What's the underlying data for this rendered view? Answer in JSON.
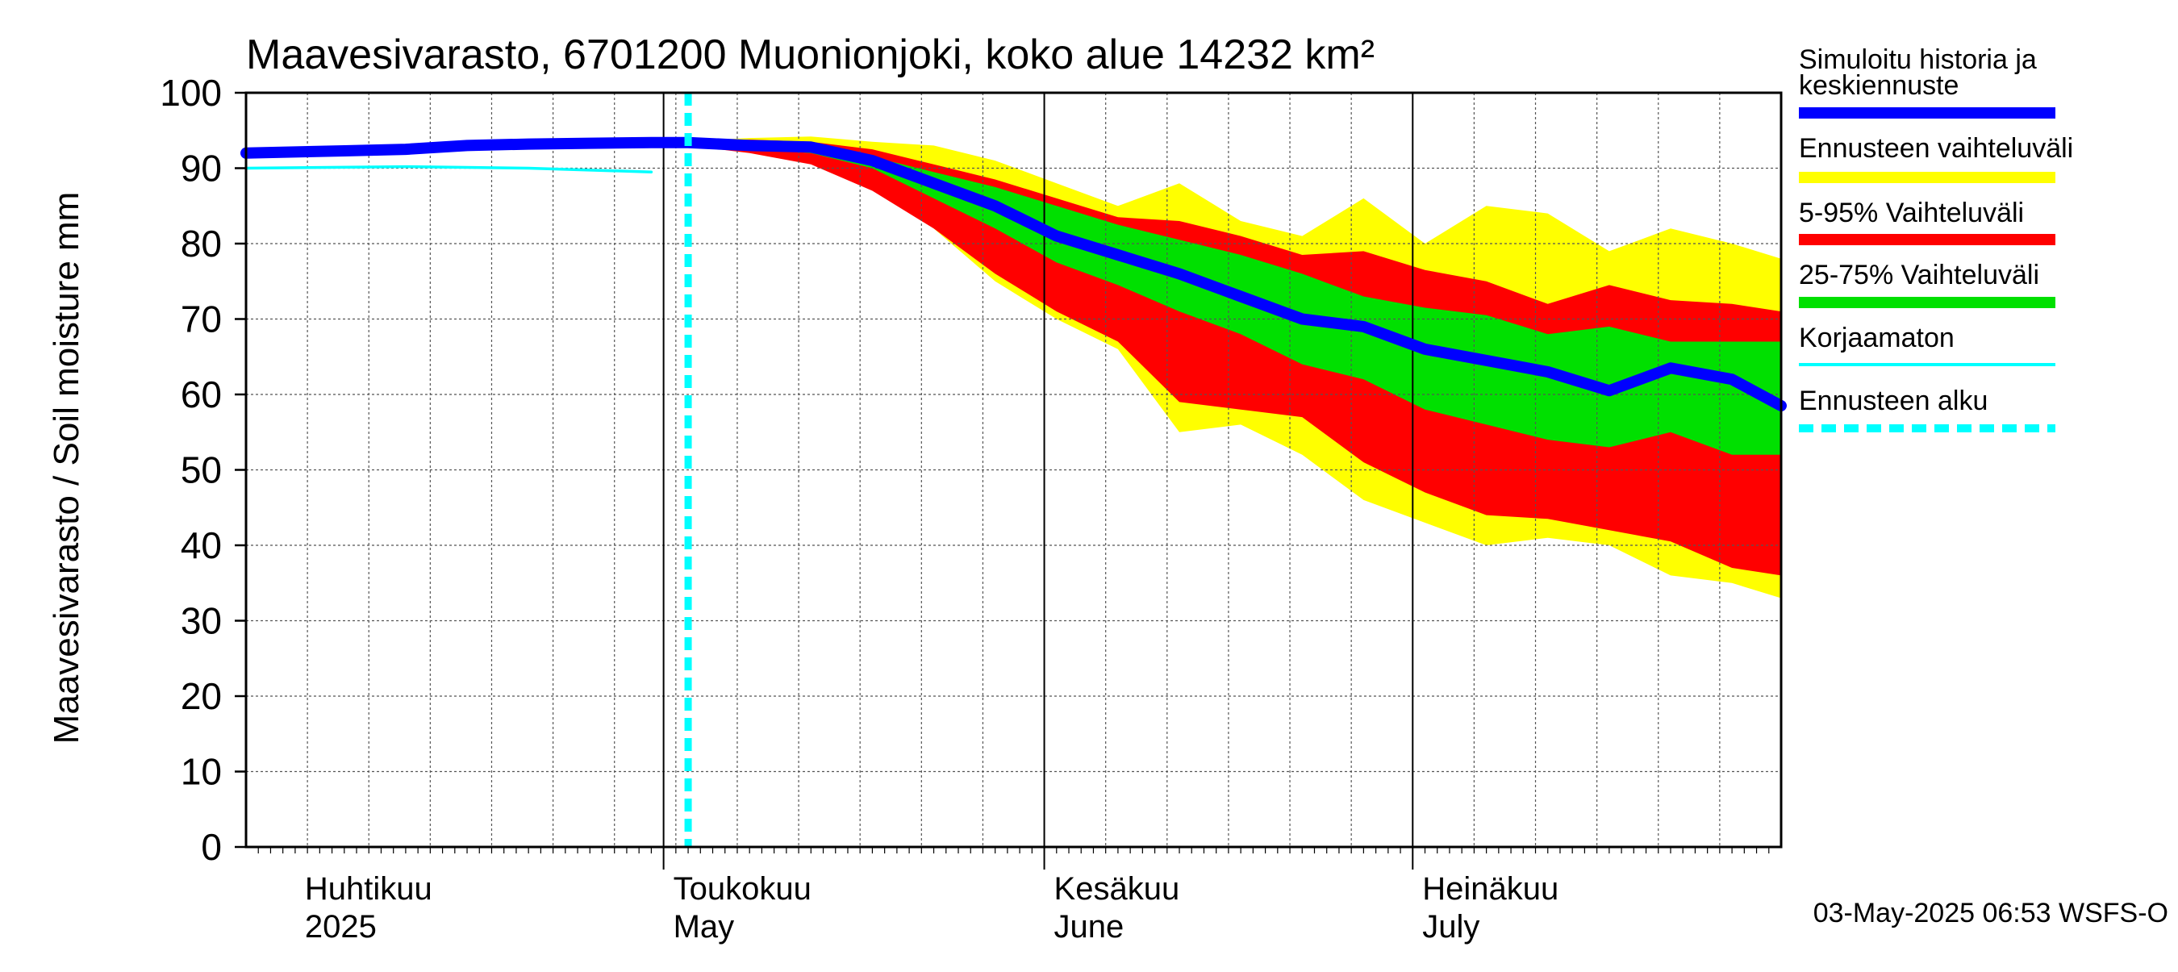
{
  "chart_data": {
    "type": "area",
    "title": "Maavesivarasto, 6701200 Muonionjoki, koko alue 14232 km²",
    "ylabel": "Maavesivarasto / Soil moisture   mm",
    "ylim": [
      0,
      100
    ],
    "yticks": [
      0,
      10,
      20,
      30,
      40,
      50,
      60,
      70,
      80,
      90,
      100
    ],
    "xlim": [
      "2025-03-28",
      "2025-07-31"
    ],
    "grid": true,
    "legend_position": "right",
    "month_labels": [
      {
        "date": "2025-04-01",
        "fi": "Huhtikuu",
        "en": "2025"
      },
      {
        "date": "2025-05-01",
        "fi": "Toukokuu",
        "en": "May"
      },
      {
        "date": "2025-06-01",
        "fi": "Kesäkuu",
        "en": "June"
      },
      {
        "date": "2025-07-01",
        "fi": "Heinäkuu",
        "en": "July"
      }
    ],
    "forecast_start": "2025-05-03",
    "footer": "03-May-2025 06:53 WSFS-O",
    "legend": [
      {
        "label": "Simuloitu historia ja keskiennuste",
        "color": "#0000ff",
        "style": "thick"
      },
      {
        "label": "Ennusteen vaihteluväli",
        "color": "#ffff00",
        "style": "band"
      },
      {
        "label": "5-95% Vaihteluväli",
        "color": "#ff0000",
        "style": "band"
      },
      {
        "label": "25-75% Vaihteluväli",
        "color": "#00e000",
        "style": "band"
      },
      {
        "label": "Korjaamaton",
        "color": "#00ffff",
        "style": "thin"
      },
      {
        "label": "Ennusteen alku",
        "color": "#00ffff",
        "style": "dashed"
      }
    ],
    "series": [
      {
        "name": "Simuloitu historia ja keskiennuste",
        "color": "#0000ff",
        "x": [
          "2025-03-28",
          "2025-04-05",
          "2025-04-10",
          "2025-04-15",
          "2025-04-20",
          "2025-04-25",
          "2025-04-30",
          "2025-05-03",
          "2025-05-08",
          "2025-05-13",
          "2025-05-18",
          "2025-05-23",
          "2025-05-28",
          "2025-06-02",
          "2025-06-07",
          "2025-06-12",
          "2025-06-17",
          "2025-06-22",
          "2025-06-27",
          "2025-07-02",
          "2025-07-07",
          "2025-07-12",
          "2025-07-17",
          "2025-07-22",
          "2025-07-27",
          "2025-07-31"
        ],
        "y": [
          92,
          92.3,
          92.5,
          93,
          93.2,
          93.3,
          93.4,
          93.4,
          93,
          92.8,
          91,
          88,
          85,
          81,
          78.5,
          76,
          73,
          70,
          69,
          66,
          64.5,
          63,
          60.5,
          63.5,
          62,
          58.5
        ]
      },
      {
        "name": "Korjaamaton",
        "color": "#00ffff",
        "x": [
          "2025-03-28",
          "2025-04-10",
          "2025-04-20",
          "2025-04-30"
        ],
        "y": [
          90,
          90.2,
          90,
          89.5
        ]
      }
    ],
    "bands": [
      {
        "name": "Ennusteen vaihteluväli",
        "color": "#ffff00",
        "x": [
          "2025-05-03",
          "2025-05-08",
          "2025-05-13",
          "2025-05-18",
          "2025-05-23",
          "2025-05-28",
          "2025-06-02",
          "2025-06-07",
          "2025-06-12",
          "2025-06-17",
          "2025-06-22",
          "2025-06-27",
          "2025-07-02",
          "2025-07-07",
          "2025-07-12",
          "2025-07-17",
          "2025-07-22",
          "2025-07-27",
          "2025-07-31"
        ],
        "upper": [
          93.6,
          94,
          94.2,
          93.5,
          93,
          91,
          88,
          85,
          88,
          83,
          81,
          86,
          80,
          85,
          84,
          79,
          82,
          80,
          78
        ],
        "lower": [
          93.2,
          92.5,
          91,
          88,
          82,
          75,
          70,
          66,
          55,
          56,
          52,
          46,
          43,
          40,
          41,
          40,
          36,
          35,
          33
        ]
      },
      {
        "name": "5-95% Vaihteluväli",
        "color": "#ff0000",
        "x": [
          "2025-05-03",
          "2025-05-08",
          "2025-05-13",
          "2025-05-18",
          "2025-05-23",
          "2025-05-28",
          "2025-06-02",
          "2025-06-07",
          "2025-06-12",
          "2025-06-17",
          "2025-06-22",
          "2025-06-27",
          "2025-07-02",
          "2025-07-07",
          "2025-07-12",
          "2025-07-17",
          "2025-07-22",
          "2025-07-27",
          "2025-07-31"
        ],
        "upper": [
          93.5,
          93.8,
          93.5,
          92.5,
          90.5,
          88.5,
          86,
          83.5,
          83,
          81,
          78.5,
          79,
          76.5,
          75,
          72,
          74.5,
          72.5,
          72,
          71
        ],
        "lower": [
          93,
          92,
          90.5,
          87,
          82,
          76,
          71,
          67,
          59,
          58,
          57,
          51,
          47,
          44,
          43.5,
          42,
          40.5,
          37,
          36
        ]
      },
      {
        "name": "25-75% Vaihteluväli",
        "color": "#00e000",
        "x": [
          "2025-05-03",
          "2025-05-08",
          "2025-05-13",
          "2025-05-18",
          "2025-05-23",
          "2025-05-28",
          "2025-06-02",
          "2025-06-07",
          "2025-06-12",
          "2025-06-17",
          "2025-06-22",
          "2025-06-27",
          "2025-07-02",
          "2025-07-07",
          "2025-07-12",
          "2025-07-17",
          "2025-07-22",
          "2025-07-27",
          "2025-07-31"
        ],
        "upper": [
          93.4,
          93.4,
          93,
          91.5,
          89.5,
          87.5,
          85,
          82.5,
          80.5,
          78.5,
          76,
          73,
          71.5,
          70.5,
          68,
          69,
          67,
          67,
          67
        ],
        "lower": [
          93.3,
          92.6,
          92,
          90,
          86,
          82,
          77.5,
          74.5,
          71,
          68,
          64,
          62,
          58,
          56,
          54,
          53,
          55,
          52,
          52
        ]
      }
    ]
  }
}
